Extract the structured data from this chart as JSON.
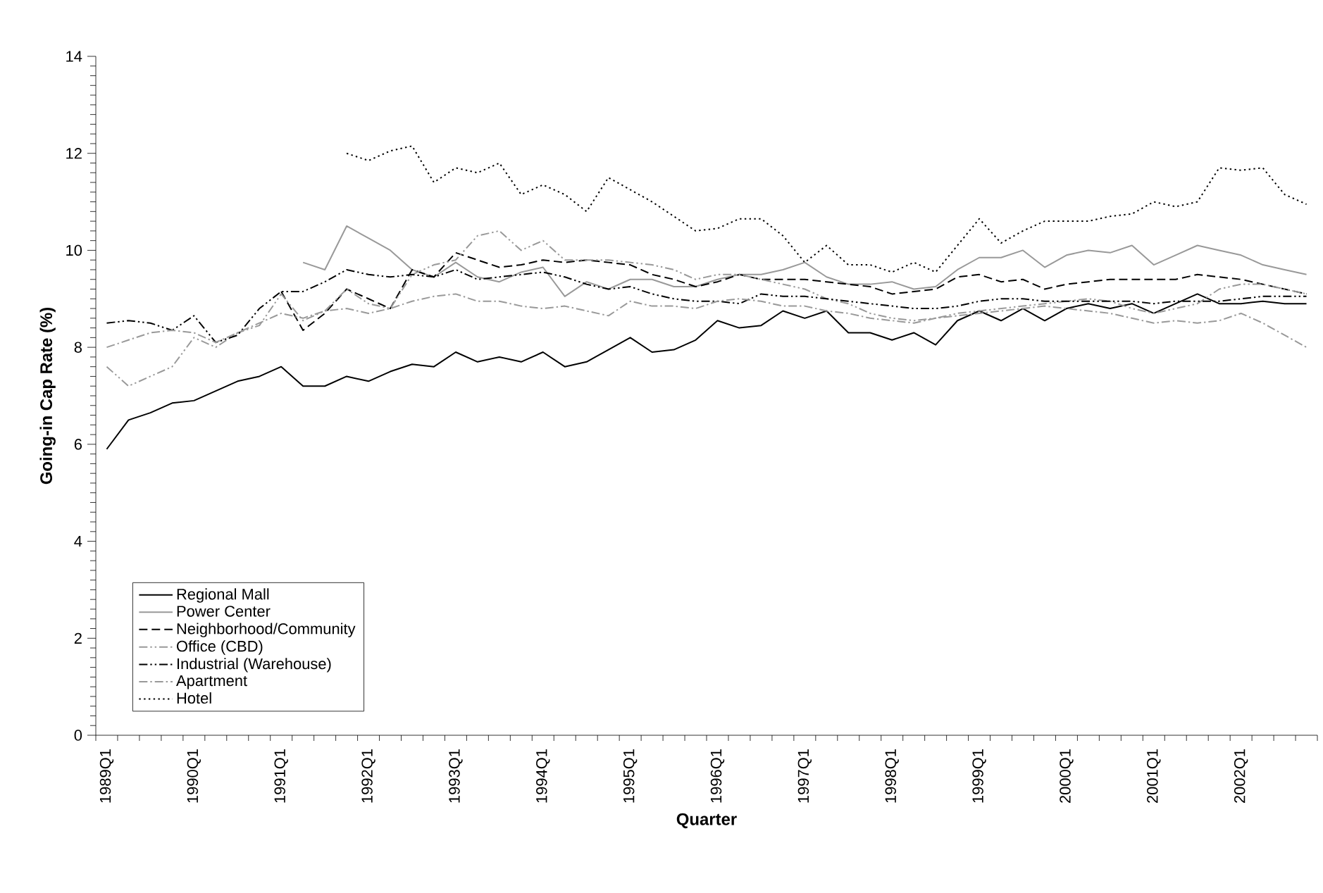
{
  "chart_data": {
    "type": "line",
    "xlabel": "Quarter",
    "ylabel": "Going-in Cap Rate (%)",
    "categories": [
      "1989Q1",
      null,
      null,
      null,
      "1990Q1",
      null,
      null,
      null,
      "1991Q1",
      null,
      null,
      null,
      "1992Q1",
      null,
      null,
      null,
      "1993Q1",
      null,
      null,
      null,
      "1994Q1",
      null,
      null,
      null,
      "1995Q1",
      null,
      null,
      null,
      "1996Q1",
      null,
      null,
      null,
      "1997Q1",
      null,
      null,
      null,
      "1998Q1",
      null,
      null,
      null,
      "1999Q1",
      null,
      null,
      null,
      "2000Q1",
      null,
      null,
      null,
      "2001Q1",
      null,
      null,
      null,
      "2002Q1",
      null,
      null,
      null
    ],
    "ylim": [
      0,
      14
    ],
    "yticks": [
      0,
      2,
      4,
      6,
      8,
      10,
      12,
      14
    ],
    "grid": false,
    "legend": "bottom left",
    "marker": "none",
    "series": [
      {
        "name": "Regional Mall",
        "color": "#000000",
        "line_style": "solid",
        "values": [
          5.9,
          6.5,
          6.65,
          6.85,
          6.9,
          7.1,
          7.3,
          7.4,
          7.6,
          7.2,
          7.2,
          7.4,
          7.3,
          7.5,
          7.65,
          7.6,
          7.9,
          7.7,
          7.8,
          7.7,
          7.9,
          7.6,
          7.7,
          7.95,
          8.2,
          7.9,
          7.95,
          8.15,
          8.55,
          8.4,
          8.45,
          8.75,
          8.6,
          8.75,
          8.3,
          8.3,
          8.15,
          8.3,
          8.05,
          8.55,
          8.75,
          8.55,
          8.8,
          8.55,
          8.8,
          8.9,
          8.8,
          8.9,
          8.7,
          8.9,
          9.1,
          8.9,
          8.9,
          8.95,
          8.9,
          8.9
        ]
      },
      {
        "name": "Power Center",
        "color": "#999999",
        "line_style": "solid",
        "values": [
          null,
          null,
          null,
          null,
          null,
          null,
          null,
          null,
          null,
          9.75,
          9.6,
          10.5,
          10.25,
          10.0,
          9.6,
          9.45,
          9.75,
          9.45,
          9.35,
          9.55,
          9.65,
          9.05,
          9.35,
          9.2,
          9.4,
          9.4,
          9.25,
          9.25,
          9.4,
          9.5,
          9.5,
          9.6,
          9.75,
          9.45,
          9.3,
          9.3,
          9.35,
          9.2,
          9.25,
          9.6,
          9.85,
          9.85,
          10.0,
          9.65,
          9.9,
          10.0,
          9.95,
          10.1,
          9.7,
          9.9,
          10.1,
          10.0,
          9.9,
          9.7,
          9.6,
          9.5
        ]
      },
      {
        "name": "Neighborhood/Community",
        "color": "#000000",
        "line_style": "dashed",
        "values": [
          null,
          null,
          null,
          null,
          null,
          null,
          null,
          null,
          9.15,
          8.35,
          8.7,
          9.2,
          9.0,
          8.8,
          9.6,
          9.45,
          9.95,
          9.8,
          9.65,
          9.7,
          9.8,
          9.75,
          9.8,
          9.75,
          9.7,
          9.5,
          9.4,
          9.25,
          9.35,
          9.5,
          9.4,
          9.4,
          9.4,
          9.35,
          9.3,
          9.25,
          9.1,
          9.15,
          9.2,
          9.45,
          9.5,
          9.35,
          9.4,
          9.2,
          9.3,
          9.35,
          9.4,
          9.4,
          9.4,
          9.4,
          9.5,
          9.45,
          9.4,
          9.3,
          9.2,
          9.1
        ]
      },
      {
        "name": "Office (CBD)",
        "color": "#999999",
        "line_style": "dashdotdot",
        "values": [
          7.6,
          7.2,
          7.4,
          7.6,
          8.2,
          8.0,
          8.3,
          8.45,
          9.1,
          8.55,
          8.75,
          9.2,
          8.9,
          8.8,
          9.5,
          9.7,
          9.8,
          10.3,
          10.4,
          10.0,
          10.2,
          9.8,
          9.8,
          9.8,
          9.75,
          9.7,
          9.6,
          9.4,
          9.5,
          9.5,
          9.4,
          9.3,
          9.2,
          9.0,
          8.9,
          8.7,
          8.6,
          8.55,
          8.6,
          8.7,
          8.75,
          8.8,
          8.85,
          8.9,
          8.95,
          9.0,
          8.95,
          8.8,
          8.7,
          8.8,
          8.9,
          9.2,
          9.3,
          9.3,
          9.2,
          9.1
        ]
      },
      {
        "name": "Industrial (Warehouse)",
        "color": "#000000",
        "line_style": "dashdotdot",
        "values": [
          8.5,
          8.55,
          8.5,
          8.35,
          8.65,
          8.1,
          8.25,
          8.8,
          9.15,
          9.15,
          9.35,
          9.6,
          9.5,
          9.45,
          9.5,
          9.45,
          9.6,
          9.4,
          9.45,
          9.5,
          9.55,
          9.45,
          9.3,
          9.2,
          9.25,
          9.1,
          9.0,
          8.95,
          8.95,
          8.9,
          9.1,
          9.05,
          9.05,
          9.0,
          8.95,
          8.9,
          8.85,
          8.8,
          8.8,
          8.85,
          8.95,
          9.0,
          9.0,
          8.95,
          8.95,
          8.95,
          8.95,
          8.95,
          8.9,
          8.95,
          8.95,
          8.95,
          9.0,
          9.05,
          9.05,
          9.05
        ]
      },
      {
        "name": "Apartment",
        "color": "#999999",
        "line_style": "dashdot",
        "values": [
          8.0,
          8.15,
          8.3,
          8.35,
          8.3,
          8.1,
          8.3,
          8.5,
          8.7,
          8.6,
          8.75,
          8.8,
          8.7,
          8.8,
          8.95,
          9.05,
          9.1,
          8.95,
          8.95,
          8.85,
          8.8,
          8.85,
          8.75,
          8.65,
          8.95,
          8.85,
          8.85,
          8.8,
          8.95,
          9.0,
          8.95,
          8.85,
          8.85,
          8.75,
          8.7,
          8.6,
          8.55,
          8.5,
          8.6,
          8.65,
          8.7,
          8.75,
          8.8,
          8.85,
          8.8,
          8.75,
          8.7,
          8.6,
          8.5,
          8.55,
          8.5,
          8.55,
          8.7,
          8.5,
          8.25,
          8.0
        ]
      },
      {
        "name": "Hotel",
        "color": "#000000",
        "line_style": "dotted",
        "values": [
          null,
          null,
          null,
          null,
          null,
          null,
          null,
          null,
          null,
          null,
          null,
          12.0,
          11.85,
          12.05,
          12.15,
          11.4,
          11.7,
          11.6,
          11.8,
          11.15,
          11.35,
          11.15,
          10.8,
          11.5,
          11.25,
          11.0,
          10.7,
          10.4,
          10.45,
          10.65,
          10.65,
          10.3,
          9.75,
          10.1,
          9.7,
          9.7,
          9.55,
          9.75,
          9.55,
          10.1,
          10.65,
          10.15,
          10.4,
          10.6,
          10.6,
          10.6,
          10.7,
          10.75,
          11.0,
          10.9,
          11.0,
          11.7,
          11.65,
          11.7,
          11.15,
          10.95
        ]
      }
    ]
  }
}
